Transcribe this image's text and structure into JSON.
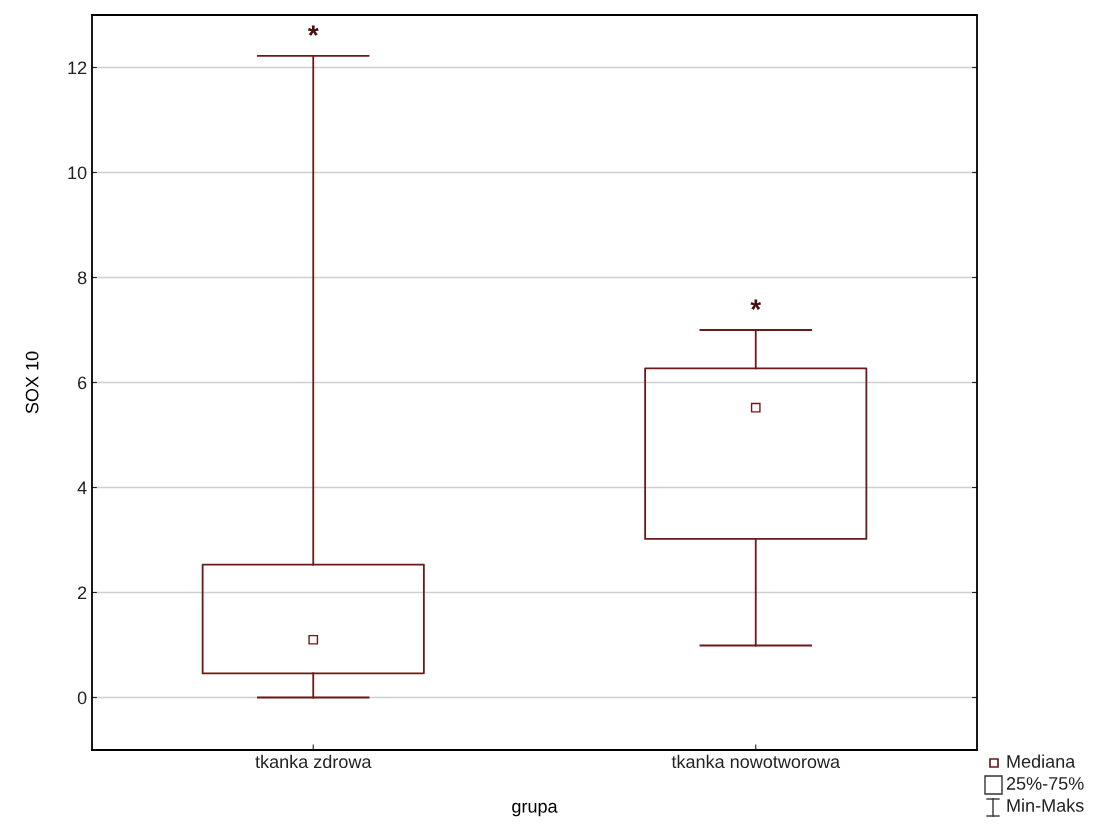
{
  "chart_data": {
    "type": "box",
    "xlabel": "grupa",
    "ylabel": "SOX 10",
    "categories": [
      "tkanka zdrowa",
      "tkanka nowotworowa"
    ],
    "boxes": [
      {
        "low": 0,
        "q1": 0.46,
        "median": 1.1,
        "q3": 2.53,
        "high": 12.22
      },
      {
        "low": 0.99,
        "q1": 3.02,
        "median": 5.52,
        "q3": 6.27,
        "high": 7.0
      }
    ],
    "color": "#6b1a1a",
    "ylim": [
      -1,
      13
    ],
    "yticks": [
      0,
      2,
      4,
      6,
      8,
      10,
      12
    ],
    "grid": "y",
    "annotations": [
      {
        "text": "*",
        "x": "tkanka zdrowa",
        "y": 12.22
      },
      {
        "text": "*",
        "x": "tkanka nowotworowa",
        "y": 7.0
      },
      "Mediana",
      "25%-75%",
      "Min-Maks"
    ]
  }
}
